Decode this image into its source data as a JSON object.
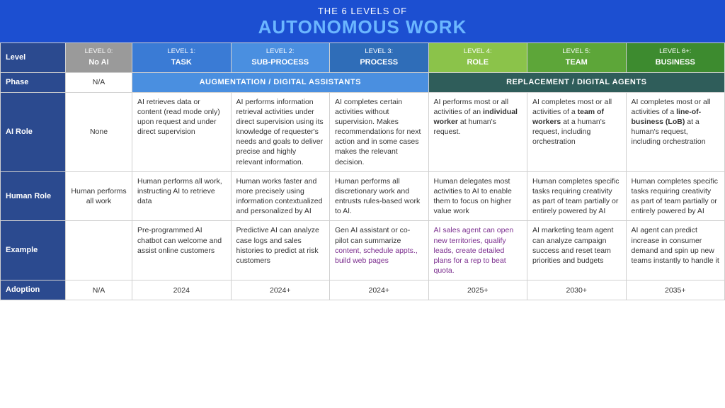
{
  "colors": {
    "headerBg": "#1c4fd1",
    "headerSub": "#6bb6ff",
    "rowLabelBg": "#2b4a8f",
    "level0": "#9a9a9a",
    "level1": "#3a7bd5",
    "level2": "#4a8fe0",
    "level3": "#2f6db8",
    "level4": "#8bc34a",
    "level5": "#5da639",
    "level6": "#3d8b2f",
    "phaseAug": "#4a8fe0",
    "phaseRep": "#2f5d5a"
  },
  "header": {
    "line1": "THE 6 LEVELS OF",
    "line2": "AUTONOMOUS WORK"
  },
  "rowLabels": {
    "level": "Level",
    "phase": "Phase",
    "aiRole": "AI Role",
    "humanRole": "Human Role",
    "example": "Example",
    "adoption": "Adoption"
  },
  "levels": [
    {
      "name": "LEVEL 0:",
      "title": "No AI"
    },
    {
      "name": "LEVEL 1:",
      "title": "TASK"
    },
    {
      "name": "LEVEL 2:",
      "title": "SUB-PROCESS"
    },
    {
      "name": "LEVEL 3:",
      "title": "PROCESS"
    },
    {
      "name": "LEVEL 4:",
      "title": "ROLE"
    },
    {
      "name": "LEVEL 5:",
      "title": "TEAM"
    },
    {
      "name": "LEVEL 6+:",
      "title": "BUSINESS"
    }
  ],
  "phase": {
    "na": "N/A",
    "augmentation": "AUGMENTATION / DIGITAL ASSISTANTS",
    "replacement": "REPLACEMENT / DIGITAL AGENTS"
  },
  "aiRole": [
    "None",
    "AI  retrieves data or content (read mode only) upon request and under direct supervision",
    "AI performs information retrieval activities under direct supervision using its knowledge of requester's needs and goals to deliver precise and highly relevant information.",
    " AI completes certain activities without supervision. Makes recommendations for next action and in some cases makes the relevant decision.",
    "AI performs most  or all activities of an <b>individual worker</b> at human's request.",
    "AI completes most or all activities of a <b>team of workers</b> at a human's request, including orchestration",
    "AI completes most or all activities of a <b>line-of-business (LoB)</b> at a human's request, including orchestration"
  ],
  "humanRole": [
    "Human performs all work",
    "Human performs all work, instructing AI to retrieve data",
    "Human works faster and more precisely using information contextualized and personalized by AI",
    "Human performs all discretionary work and entrusts rules-based work to AI.",
    "Human delegates most activities to AI to enable them to focus on higher value work",
    "Human completes specific tasks requiring creativity  as part of team partially or entirely powered by AI",
    "Human completes specific tasks requiring creativity  as part of team partially or entirely powered by AI"
  ],
  "example": [
    "",
    "Pre-programmed AI chatbot can welcome and assist online customers",
    "Predictive AI can analyze case logs and sales histories to predict at risk customers",
    "Gen AI assistant or co-pilot can summarize <span class=\"purple\">content, schedule appts., build web pages</span>",
    "<span class=\"purple\">AI sales agent can open new territories, qualify leads, create detailed plans for a rep to beat quota.</span>",
    "AI marketing team agent can analyze campaign success and reset team priorities and budgets",
    "AI agent can predict increase in consumer demand and spin up new teams instantly to handle it"
  ],
  "adoption": [
    "N/A",
    "2024",
    "2024+",
    "2024+",
    "2025+",
    "2030+",
    "2035+"
  ]
}
